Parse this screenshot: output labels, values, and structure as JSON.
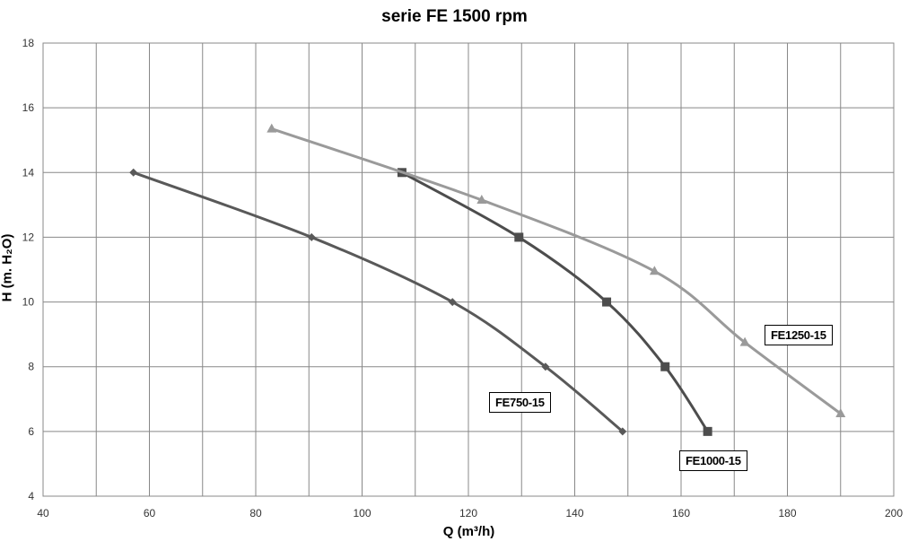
{
  "chart_data": {
    "type": "line",
    "title": "serie FE 1500 rpm",
    "xlabel": "Q (m³/h)",
    "ylabel": "H (m. H₂O)",
    "xlim": [
      40,
      200
    ],
    "ylim": [
      4,
      18
    ],
    "xticks": [
      40,
      60,
      80,
      100,
      120,
      140,
      160,
      180,
      200
    ],
    "yticks": [
      4,
      6,
      8,
      10,
      12,
      14,
      16,
      18
    ],
    "grid": true,
    "series": [
      {
        "name": "FE750-15",
        "color": "#595959",
        "marker": "diamond",
        "x": [
          57,
          90.5,
          117,
          134.5,
          149
        ],
        "y": [
          14,
          12,
          10,
          8,
          6
        ]
      },
      {
        "name": "FE1000-15",
        "color": "#4d4d4d",
        "marker": "square",
        "x": [
          107.5,
          129.5,
          146,
          157,
          165
        ],
        "y": [
          14,
          12,
          10,
          8,
          6
        ]
      },
      {
        "name": "FE1250-15",
        "color": "#9a9a9a",
        "marker": "triangle",
        "x": [
          83,
          122.5,
          155,
          172,
          190
        ],
        "y": [
          15.35,
          13.15,
          10.95,
          8.75,
          6.55
        ]
      }
    ]
  }
}
